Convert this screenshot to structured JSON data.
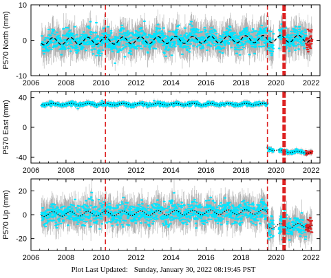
{
  "footer": {
    "label": "Plot Last Updated:",
    "timestamp": "Sunday, January 30, 2022 08:19:45 PST"
  },
  "colors": {
    "scatter": "#00e5ff",
    "error_bars": "#b0b0b0",
    "model": "#000000",
    "recent": "#dd2222",
    "event_lines": "#dd2222",
    "axes": "#000000"
  },
  "chart_data": [
    {
      "type": "scatter",
      "ylabel": "P570 North (mm)",
      "xlim": [
        2006,
        2022.5
      ],
      "ylim": [
        -10,
        10
      ],
      "yticks": [
        -10,
        0,
        10
      ],
      "xticks": [
        2006,
        2008,
        2010,
        2012,
        2014,
        2016,
        2018,
        2020,
        2022
      ],
      "xtick_labels": [
        "2006",
        "2008",
        "2010",
        "2012",
        "2014",
        "2016",
        "2018",
        "2020",
        "2022"
      ],
      "data_start": 2006.6,
      "data_end": 2022.05,
      "events": [
        {
          "x": 2010.25,
          "style": "dashed"
        },
        {
          "x": 2019.5,
          "style": "dashed"
        },
        {
          "x": 2020.45,
          "style": "thick-dashed"
        }
      ],
      "trend": {
        "offset": -0.3,
        "slope": 0.05
      },
      "segments": [
        {
          "from": 2006.6,
          "to": 2022.05,
          "level": 0
        }
      ],
      "seasonal_amp": 1.0,
      "scatter_sd": 1.6,
      "error_bar": 3.2,
      "model_style": "dashed",
      "recent_from": 2021.7
    },
    {
      "type": "scatter",
      "ylabel": "P570 East (mm)",
      "xlim": [
        2006,
        2022.5
      ],
      "ylim": [
        -48,
        48
      ],
      "yticks": [
        -40,
        0,
        40
      ],
      "xticks": [
        2006,
        2008,
        2010,
        2012,
        2014,
        2016,
        2018,
        2020,
        2022
      ],
      "xtick_labels": [
        "2006",
        "2008",
        "2010",
        "2012",
        "2014",
        "2016",
        "2018",
        "2020",
        "2022"
      ],
      "data_start": 2006.6,
      "data_end": 2022.05,
      "events": [
        {
          "x": 2010.25,
          "style": "dashed"
        },
        {
          "x": 2019.5,
          "style": "dashed"
        },
        {
          "x": 2020.45,
          "style": "thick-dashed"
        }
      ],
      "trend": {
        "offset": 0,
        "slope": 0
      },
      "segments": [
        {
          "from": 2006.6,
          "to": 2019.5,
          "level": 31
        },
        {
          "from": 2019.5,
          "to": 2022.05,
          "level": -34
        }
      ],
      "postseismic": {
        "start": 2019.5,
        "amp": 6,
        "tau": 0.8
      },
      "seasonal_amp": 1.2,
      "scatter_sd": 1.3,
      "error_bar": 2.6,
      "model_style": "dotted",
      "recent_from": 2021.7
    },
    {
      "type": "scatter",
      "ylabel": "P570 Up (mm)",
      "xlim": [
        2006,
        2022.5
      ],
      "ylim": [
        -30,
        30
      ],
      "yticks": [
        -20,
        0,
        20
      ],
      "xticks": [
        2006,
        2008,
        2010,
        2012,
        2014,
        2016,
        2018,
        2020,
        2022
      ],
      "xtick_labels": [
        "2006",
        "2008",
        "2010",
        "2012",
        "2014",
        "2016",
        "2018",
        "2020",
        "2022"
      ],
      "data_start": 2006.6,
      "data_end": 2022.05,
      "events": [
        {
          "x": 2010.25,
          "style": "dashed"
        },
        {
          "x": 2019.5,
          "style": "dashed"
        },
        {
          "x": 2020.45,
          "style": "thick-dashed"
        }
      ],
      "trend": {
        "offset": 0.5,
        "slope": 0.15
      },
      "segments": [
        {
          "from": 2006.6,
          "to": 2019.5,
          "level": 0
        },
        {
          "from": 2019.5,
          "to": 2022.05,
          "level": -12
        }
      ],
      "seasonal_amp": 2.0,
      "scatter_sd": 4.5,
      "error_bar": 9,
      "model_style": "dotted",
      "recent_from": 2021.7
    }
  ]
}
